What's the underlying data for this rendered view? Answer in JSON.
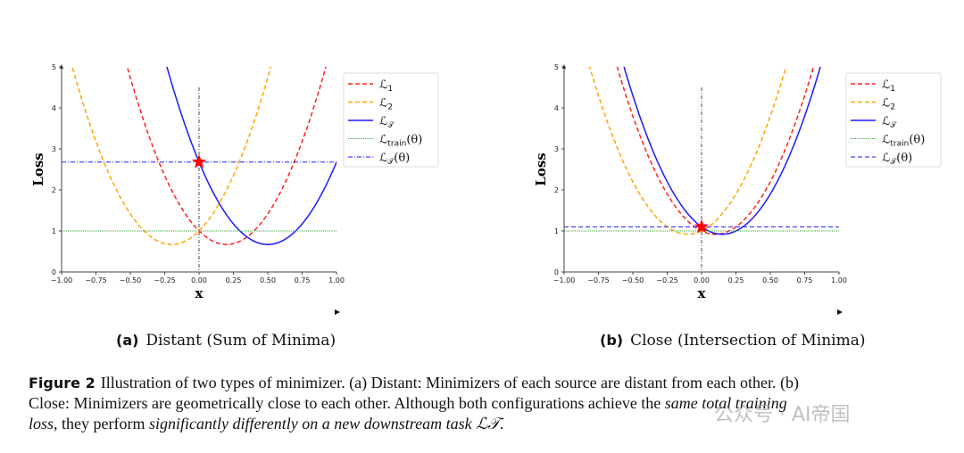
{
  "figure": {
    "label": "Figure 2",
    "caption_line1": "Illustration of two types of minimizer. (a) Distant: Minimizers of each source are distant from each other. (b)",
    "caption_line2a": "Close: Minimizers are geometrically close to each other. Although both configurations achieve the ",
    "caption_line2b": "same total training",
    "caption_line3a": "loss",
    "caption_line3b": ", they perform ",
    "caption_line3c": "significantly differently on a new downstream task ℒ𝒯",
    "caption_line3d": "."
  },
  "watermark": "公众号 · AI帝国",
  "chart_data": [
    {
      "type": "line",
      "sublabel": "(a)",
      "subtitle": "Distant (Sum of Minima)",
      "xlabel": "x",
      "ylabel": "Loss",
      "xlim": [
        -1,
        1
      ],
      "ylim": [
        0,
        5
      ],
      "xticks": [
        "−1.00",
        "−0.75",
        "−0.50",
        "−0.25",
        "0.00",
        "0.25",
        "0.50",
        "0.75",
        "1.00"
      ],
      "yticks": [
        "0",
        "1",
        "2",
        "3",
        "4",
        "5"
      ],
      "legend_position": "outside-right",
      "series": [
        {
          "name": "ℒ",
          "sub": "1",
          "kind": "quadratic",
          "min_x": 0.2,
          "min_y": 0.67,
          "curvature": 8.3,
          "color": "#ff2020",
          "style": "dashed"
        },
        {
          "name": "ℒ",
          "sub": "2",
          "kind": "quadratic",
          "min_x": -0.2,
          "min_y": 0.67,
          "curvature": 8.3,
          "color": "#ffa500",
          "style": "dashed"
        },
        {
          "name": "ℒ",
          "sub": "𝒯",
          "kind": "quadratic",
          "min_x": 0.5,
          "min_y": 0.67,
          "curvature": 8.04,
          "color": "#1a1aff",
          "style": "solid"
        },
        {
          "name": "ℒ",
          "sub": "train",
          "suffix": "(θ)",
          "kind": "hline",
          "y": 1.0,
          "color": "#2ca02c",
          "style": "dotted"
        },
        {
          "name": "ℒ",
          "sub": "𝒯",
          "suffix": "(θ)",
          "kind": "hline",
          "y": 2.68,
          "color": "#1a1aff",
          "style": "dashdot"
        }
      ],
      "vline_x": 0,
      "vline_top": 4.5,
      "star": {
        "x": 0,
        "y": 2.68,
        "color": "#ff0000"
      }
    },
    {
      "type": "line",
      "sublabel": "(b)",
      "subtitle": "Close (Intersection of Minima)",
      "xlabel": "x",
      "ylabel": "Loss",
      "xlim": [
        -1,
        1
      ],
      "ylim": [
        0,
        5
      ],
      "xticks": [
        "−1.00",
        "−0.75",
        "−0.50",
        "−0.25",
        "0.00",
        "0.25",
        "0.50",
        "0.75",
        "1.00"
      ],
      "yticks": [
        "0",
        "1",
        "2",
        "3",
        "4",
        "5"
      ],
      "legend_position": "outside-right",
      "series": [
        {
          "name": "ℒ",
          "sub": "1",
          "kind": "quadratic",
          "min_x": 0.1,
          "min_y": 0.92,
          "curvature": 8.0,
          "color": "#ff2020",
          "style": "dashed"
        },
        {
          "name": "ℒ",
          "sub": "2",
          "kind": "quadratic",
          "min_x": -0.1,
          "min_y": 0.92,
          "curvature": 8.0,
          "color": "#ffa500",
          "style": "dashed"
        },
        {
          "name": "ℒ",
          "sub": "𝒯",
          "kind": "quadratic",
          "min_x": 0.15,
          "min_y": 0.92,
          "curvature": 8.0,
          "color": "#1a1aff",
          "style": "solid"
        },
        {
          "name": "ℒ",
          "sub": "train",
          "suffix": "(θ)",
          "kind": "hline",
          "y": 1.0,
          "color": "#2ca02c",
          "style": "dotted"
        },
        {
          "name": "ℒ",
          "sub": "𝒯",
          "suffix": "(θ)",
          "kind": "hline",
          "y": 1.1,
          "color": "#1a1aff",
          "style": "dashed"
        }
      ],
      "vline_x": 0,
      "vline_top": 4.5,
      "star": {
        "x": 0,
        "y": 1.1,
        "color": "#ff0000"
      }
    }
  ]
}
